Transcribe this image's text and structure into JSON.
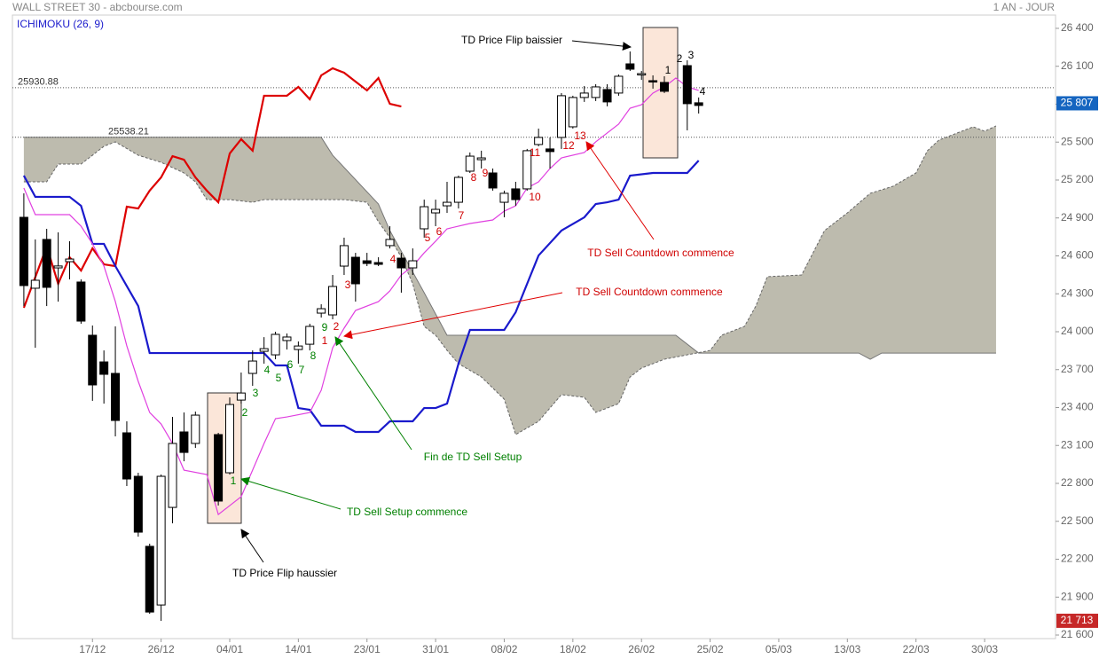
{
  "chart_data": {
    "type": "candlestick",
    "title": "WALL STREET 30 - abcbourse.com",
    "subtitle": "1 AN - JOUR",
    "indicator_label": "ICHIMOKU (26, 9)",
    "up_color": "#ffffff",
    "down_color": "#000000",
    "x": [
      0,
      1,
      2,
      3,
      4,
      5,
      6,
      7,
      8,
      9,
      10,
      11,
      12,
      13,
      14,
      15,
      17,
      18,
      19,
      20,
      21,
      22,
      23,
      24,
      25,
      26,
      27,
      28,
      29,
      30,
      31,
      32,
      33,
      34,
      35,
      36,
      37,
      38,
      39,
      40,
      41,
      42,
      43,
      44,
      45,
      46,
      47,
      48,
      49,
      50,
      51,
      52,
      53,
      54,
      55,
      56,
      58,
      59
    ],
    "open": [
      24905,
      24344,
      24730,
      24505,
      24554,
      24393,
      23972,
      23761,
      23670,
      23200,
      22856,
      22302,
      21838,
      22610,
      23207,
      23116,
      23186,
      22884,
      23459,
      23670,
      23845,
      23817,
      23930,
      23859,
      23901,
      24147,
      24133,
      24519,
      24589,
      24561,
      24547,
      24681,
      24582,
      24505,
      24814,
      24940,
      24996,
      25024,
      25270,
      25361,
      25256,
      25024,
      25130,
      25130,
      25481,
      25446,
      25537,
      25621,
      25853,
      25853,
      25916,
      25888,
      26119,
      26035,
      25986,
      25972,
      26105,
      25811
    ],
    "high": [
      25095,
      24730,
      24814,
      24786,
      24716,
      24414,
      24049,
      23852,
      24042,
      23291,
      22884,
      22323,
      22870,
      23326,
      23361,
      23368,
      23200,
      23480,
      23677,
      23852,
      23957,
      24000,
      23986,
      23923,
      24063,
      24217,
      24449,
      24744,
      24624,
      24624,
      24589,
      24835,
      24624,
      24659,
      25045,
      25045,
      25186,
      25235,
      25418,
      25432,
      25291,
      25116,
      25186,
      25446,
      25607,
      25537,
      25888,
      25867,
      25944,
      25958,
      25958,
      26035,
      26217,
      26063,
      26028,
      26021,
      26147,
      25853
    ],
    "low": [
      24203,
      23873,
      24203,
      24238,
      24414,
      24063,
      23453,
      23431,
      23172,
      22779,
      22379,
      21768,
      21712,
      22484,
      22975,
      23081,
      22625,
      22870,
      23431,
      23572,
      23747,
      23782,
      23859,
      23747,
      23852,
      24112,
      24098,
      24449,
      24238,
      24519,
      24519,
      24659,
      24309,
      24449,
      24744,
      24835,
      24940,
      24975,
      25256,
      25291,
      25116,
      24905,
      24996,
      25116,
      25467,
      25291,
      25446,
      25607,
      25818,
      25825,
      25783,
      25867,
      26063,
      25993,
      25923,
      25888,
      25593,
      25726
    ],
    "close": [
      24365,
      24407,
      24351,
      24520,
      24575,
      24084,
      23579,
      23663,
      23298,
      22835,
      22414,
      21782,
      22856,
      23116,
      23045,
      23340,
      22660,
      23424,
      23515,
      23768,
      23866,
      23979,
      23958,
      23887,
      24042,
      24182,
      24358,
      24681,
      24379,
      24540,
      24533,
      24730,
      24505,
      24561,
      24989,
      24968,
      25024,
      25221,
      25389,
      25375,
      25137,
      25095,
      25045,
      25432,
      25537,
      25425,
      25867,
      25853,
      25888,
      25937,
      25818,
      26021,
      26077,
      26042,
      25979,
      25902,
      25804,
      25790
    ],
    "lines": [
      {
        "color": "#dd0000",
        "x": [
          0,
          2,
          3,
          4,
          5,
          6,
          7,
          8,
          9,
          10,
          11,
          12,
          13,
          14,
          15,
          16,
          17,
          18,
          19,
          20,
          21,
          22,
          23,
          24,
          25,
          26,
          27,
          28,
          29,
          30,
          31,
          32,
          33
        ],
        "values": [
          24189,
          24674,
          24379,
          24589,
          24484,
          24660,
          24533,
          24519,
          24989,
          24975,
          25116,
          25221,
          25389,
          25361,
          25221,
          25116,
          25024,
          25410,
          25523,
          25432,
          25867,
          25867,
          25867,
          25937,
          25839,
          26028,
          26084,
          26049,
          25979,
          25909,
          26007,
          25803,
          25782
        ]
      },
      {
        "color": "#1a1acc",
        "x": [
          0,
          1,
          4,
          5,
          6,
          7,
          8,
          10,
          11,
          12,
          21,
          22,
          23,
          24,
          25,
          26,
          28,
          29,
          31,
          32,
          34,
          35,
          36,
          37,
          38,
          39,
          42,
          43,
          44,
          45,
          47,
          49,
          50,
          51,
          52,
          53,
          55,
          58,
          59
        ],
        "values": [
          25235,
          25067,
          25067,
          24996,
          24695,
          24695,
          24519,
          24203,
          23831,
          23831,
          23831,
          23733,
          23733,
          23396,
          23382,
          23256,
          23256,
          23207,
          23207,
          23291,
          23291,
          23396,
          23396,
          23431,
          23747,
          24014,
          24014,
          24154,
          24379,
          24603,
          24800,
          24905,
          25010,
          25024,
          25045,
          25235,
          25256,
          25256,
          25354
        ]
      },
      {
        "color": "#e040e0",
        "x": [
          0,
          1,
          4,
          5,
          6,
          7,
          8,
          9,
          10,
          11,
          12,
          13,
          14,
          16,
          17,
          18,
          19,
          20,
          21,
          22,
          23,
          25,
          26,
          27,
          28,
          29,
          31,
          32,
          33,
          34,
          35,
          36,
          37,
          39,
          41,
          42,
          43,
          44,
          45,
          46,
          47,
          49,
          50,
          52,
          53,
          54,
          55,
          56,
          57,
          58,
          59
        ],
        "values": [
          25137,
          24926,
          24926,
          24835,
          24695,
          24519,
          24238,
          23888,
          23607,
          23361,
          23270,
          23116,
          22905,
          22870,
          22554,
          22624,
          22695,
          22905,
          23116,
          23312,
          23326,
          23361,
          23537,
          23873,
          24028,
          24168,
          24238,
          24323,
          24449,
          24519,
          24624,
          24716,
          24814,
          24856,
          24884,
          24954,
          24996,
          25137,
          25186,
          25291,
          25375,
          25418,
          25502,
          25642,
          25768,
          25796,
          25888,
          25937,
          26007,
          25937,
          25909
        ]
      }
    ],
    "cloud": {
      "color": "#bdbbae",
      "span_a": {
        "x": [
          0,
          2,
          3,
          5,
          6,
          7,
          8,
          10,
          12,
          14,
          15,
          16,
          18,
          20,
          21,
          22,
          28,
          30,
          31,
          32,
          33,
          34,
          35,
          36,
          37,
          38,
          40,
          42,
          43,
          45,
          47,
          49,
          50,
          52,
          53,
          54,
          56,
          58,
          60,
          61,
          63,
          64,
          65,
          68,
          70,
          72,
          74,
          76,
          78,
          79,
          80,
          82,
          83,
          84,
          85
        ],
        "values": [
          25186,
          25186,
          25326,
          25326,
          25396,
          25467,
          25502,
          25396,
          25340,
          25256,
          25186,
          25045,
          25045,
          25024,
          25045,
          25045,
          25045,
          25024,
          24870,
          24744,
          24589,
          24379,
          24042,
          23972,
          23852,
          23747,
          23642,
          23466,
          23186,
          23291,
          23502,
          23481,
          23361,
          23431,
          23642,
          23712,
          23782,
          23817,
          23852,
          23972,
          24042,
          24203,
          24435,
          24449,
          24800,
          24940,
          25095,
          25151,
          25256,
          25432,
          25516,
          25586,
          25621,
          25586,
          25628
        ]
      },
      "span_b": {
        "x": [
          0,
          26,
          27,
          31,
          32,
          35,
          37,
          57,
          59,
          73,
          74,
          75,
          85
        ],
        "values": [
          25538,
          25538,
          25396,
          25010,
          24800,
          24309,
          23972,
          23972,
          23831,
          23831,
          23782,
          23831,
          23831
        ]
      }
    },
    "levels": [
      25930.88,
      25538.21
    ],
    "price_tags": [
      {
        "value": 25807,
        "label": "25 807",
        "color": "#1565c0"
      },
      {
        "value": 21713,
        "label": "21 713",
        "color": "#c62828"
      }
    ],
    "xlim": [
      -1,
      90.2
    ],
    "xticks": [
      {
        "value": 6,
        "label": "17/12"
      },
      {
        "value": 12,
        "label": "26/12"
      },
      {
        "value": 18,
        "label": "04/01"
      },
      {
        "value": 24,
        "label": "14/01"
      },
      {
        "value": 30,
        "label": "23/01"
      },
      {
        "value": 36,
        "label": "31/01"
      },
      {
        "value": 42,
        "label": "08/02"
      },
      {
        "value": 48,
        "label": "18/02"
      },
      {
        "value": 54,
        "label": "26/02"
      },
      {
        "value": 60,
        "label": "25/02"
      },
      {
        "value": 66,
        "label": "05/03"
      },
      {
        "value": 72,
        "label": "13/03"
      },
      {
        "value": 78,
        "label": "22/03"
      },
      {
        "value": 84,
        "label": "30/03"
      }
    ],
    "ylim": [
      21572,
      26505
    ],
    "yticks": [
      {
        "value": 26400,
        "label": "26 400"
      },
      {
        "value": 26100,
        "label": "26 100"
      },
      {
        "value": 25800,
        "label": "25 800"
      },
      {
        "value": 25500,
        "label": "25 500"
      },
      {
        "value": 25200,
        "label": "25 200"
      },
      {
        "value": 24900,
        "label": "24 900"
      },
      {
        "value": 24600,
        "label": "24 600"
      },
      {
        "value": 24300,
        "label": "24 300"
      },
      {
        "value": 24000,
        "label": "24 000"
      },
      {
        "value": 23700,
        "label": "23 700"
      },
      {
        "value": 23400,
        "label": "23 400"
      },
      {
        "value": 23100,
        "label": "23 100"
      },
      {
        "value": 22800,
        "label": "22 800"
      },
      {
        "value": 22500,
        "label": "22 500"
      },
      {
        "value": 22200,
        "label": "22 200"
      },
      {
        "value": 21900,
        "label": "21 900"
      },
      {
        "value": 21600,
        "label": "21 600"
      }
    ],
    "annotations": [
      {
        "text": "1",
        "color": "#008000"
      },
      {
        "text": "2",
        "color": "#008000"
      },
      {
        "text": "3",
        "color": "#008000"
      },
      {
        "text": "4",
        "color": "#008000"
      },
      {
        "text": "5",
        "color": "#008000"
      },
      {
        "text": "6",
        "color": "#008000"
      },
      {
        "text": "7",
        "color": "#008000"
      },
      {
        "text": "8",
        "color": "#008000"
      },
      {
        "text": "9",
        "color": "#008000"
      },
      {
        "text": "1",
        "color": "#d00000"
      },
      {
        "text": "2",
        "color": "#d00000"
      },
      {
        "text": "3",
        "color": "#d00000"
      },
      {
        "text": "4",
        "color": "#d00000"
      },
      {
        "text": "5",
        "color": "#d00000"
      },
      {
        "text": "6",
        "color": "#d00000"
      },
      {
        "text": "7",
        "color": "#d00000"
      },
      {
        "text": "8",
        "color": "#d00000"
      },
      {
        "text": "9",
        "color": "#d00000"
      },
      {
        "text": "10",
        "color": "#d00000"
      },
      {
        "text": "11",
        "color": "#d00000"
      },
      {
        "text": "12",
        "color": "#d00000"
      },
      {
        "text": "13",
        "color": "#d00000"
      },
      {
        "text": "1",
        "color": "#000000"
      },
      {
        "text": "2",
        "color": "#000000"
      },
      {
        "text": "3",
        "color": "#000000"
      },
      {
        "text": "4",
        "color": "#000000"
      },
      {
        "text": "TD Price Flip baissier",
        "color": "#000000"
      },
      {
        "text": "TD Price Flip haussier",
        "color": "#000000"
      },
      {
        "text": "TD Sell Setup commence",
        "color": "#008000"
      },
      {
        "text": "Fin de TD Sell Setup",
        "color": "#008000"
      },
      {
        "text": "TD Sell Countdown commence",
        "color": "#d00000"
      },
      {
        "text": "TD Sell Countdown commence",
        "color": "#d00000"
      }
    ]
  }
}
